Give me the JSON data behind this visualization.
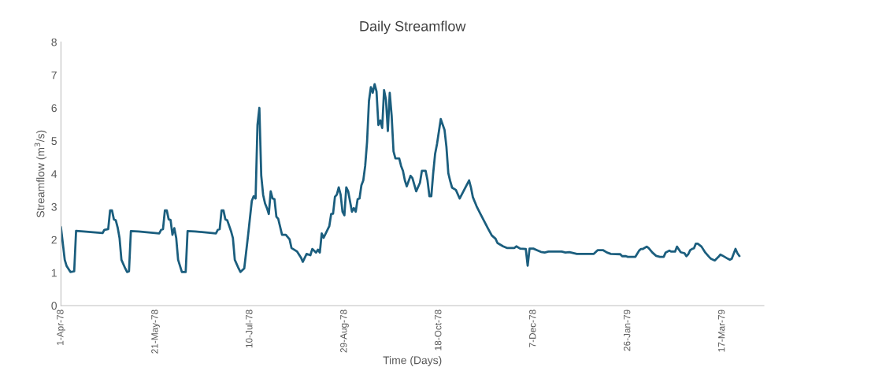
{
  "chart_data": {
    "type": "line",
    "title": "Daily Streamflow",
    "xlabel": "Time (Days)",
    "ylabel": "Streamflow (m$^{3}$/s)",
    "xlim": [
      "1978-04-01",
      "1979-04-08"
    ],
    "xticks": [
      {
        "value": "1978-04-01",
        "label": "1-Apr-78"
      },
      {
        "value": "1978-05-21",
        "label": "21-May-78"
      },
      {
        "value": "1978-07-10",
        "label": "10-Jul-78"
      },
      {
        "value": "1978-08-29",
        "label": "29-Aug-78"
      },
      {
        "value": "1978-10-18",
        "label": "18-Oct-78"
      },
      {
        "value": "1978-12-07",
        "label": "7-Dec-78"
      },
      {
        "value": "1979-01-26",
        "label": "26-Jan-79"
      },
      {
        "value": "1979-03-17",
        "label": "17-Mar-79"
      }
    ],
    "ylim": [
      0,
      8
    ],
    "yticks": [
      0,
      1,
      2,
      3,
      4,
      5,
      6,
      7,
      8
    ],
    "grid": false,
    "marker": "none",
    "line_style": "solid",
    "series": [
      {
        "color": "#1b5e7e",
        "x": [
          "1978-04-01",
          "1978-04-03",
          "1978-04-04",
          "1978-04-06",
          "1978-04-08",
          "1978-04-09",
          "1978-04-13",
          "1978-04-23",
          "1978-04-24",
          "1978-04-26",
          "1978-04-27",
          "1978-04-28",
          "1978-04-29",
          "1978-04-30",
          "1978-05-01",
          "1978-05-02",
          "1978-05-03",
          "1978-05-05",
          "1978-05-06",
          "1978-05-07",
          "1978-05-08",
          "1978-05-12",
          "1978-05-23",
          "1978-05-24",
          "1978-05-25",
          "1978-05-26",
          "1978-05-27",
          "1978-05-28",
          "1978-05-29",
          "1978-05-30",
          "1978-05-31",
          "1978-06-01",
          "1978-06-02",
          "1978-06-04",
          "1978-06-06",
          "1978-06-07",
          "1978-06-11",
          "1978-06-22",
          "1978-06-23",
          "1978-06-24",
          "1978-06-25",
          "1978-06-26",
          "1978-06-27",
          "1978-06-28",
          "1978-06-30",
          "1978-07-01",
          "1978-07-02",
          "1978-07-04",
          "1978-07-05",
          "1978-07-07",
          "1978-07-09",
          "1978-07-11",
          "1978-07-12",
          "1978-07-13",
          "1978-07-14",
          "1978-07-15",
          "1978-07-16",
          "1978-07-17",
          "1978-07-18",
          "1978-07-19",
          "1978-07-20",
          "1978-07-21",
          "1978-07-22",
          "1978-07-23",
          "1978-07-24",
          "1978-07-25",
          "1978-07-27",
          "1978-07-29",
          "1978-07-31",
          "1978-08-01",
          "1978-08-04",
          "1978-08-06",
          "1978-08-07",
          "1978-08-09",
          "1978-08-11",
          "1978-08-12",
          "1978-08-14",
          "1978-08-15",
          "1978-08-16",
          "1978-08-17",
          "1978-08-18",
          "1978-08-21",
          "1978-08-22",
          "1978-08-23",
          "1978-08-24",
          "1978-08-25",
          "1978-08-26",
          "1978-08-27",
          "1978-08-28",
          "1978-08-29",
          "1978-08-30",
          "1978-08-31",
          "1978-09-02",
          "1978-09-03",
          "1978-09-04",
          "1978-09-05",
          "1978-09-06",
          "1978-09-07",
          "1978-09-08",
          "1978-09-09",
          "1978-09-10",
          "1978-09-11",
          "1978-09-12",
          "1978-09-13",
          "1978-09-14",
          "1978-09-15",
          "1978-09-16",
          "1978-09-17",
          "1978-09-18",
          "1978-09-19",
          "1978-09-20",
          "1978-09-21",
          "1978-09-22",
          "1978-09-23",
          "1978-09-24",
          "1978-09-25",
          "1978-09-27",
          "1978-09-28",
          "1978-09-29",
          "1978-09-30",
          "1978-10-01",
          "1978-10-03",
          "1978-10-04",
          "1978-10-06",
          "1978-10-08",
          "1978-10-09",
          "1978-10-11",
          "1978-10-12",
          "1978-10-13",
          "1978-10-14",
          "1978-10-15",
          "1978-10-16",
          "1978-10-17",
          "1978-10-19",
          "1978-10-21",
          "1978-10-22",
          "1978-10-23",
          "1978-10-24",
          "1978-10-25",
          "1978-10-27",
          "1978-10-29",
          "1978-10-31",
          "1978-11-02",
          "1978-11-03",
          "1978-11-04",
          "1978-11-05",
          "1978-11-07",
          "1978-11-09",
          "1978-11-11",
          "1978-11-13",
          "1978-11-15",
          "1978-11-17",
          "1978-11-18",
          "1978-11-21",
          "1978-11-23",
          "1978-11-27",
          "1978-11-28",
          "1978-11-30",
          "1978-12-03",
          "1978-12-04",
          "1978-12-05",
          "1978-12-07",
          "1978-12-09",
          "1978-12-11",
          "1978-12-13",
          "1978-12-15",
          "1978-12-22",
          "1978-12-24",
          "1978-12-26",
          "1978-12-27",
          "1978-12-30",
          "1979-01-08",
          "1979-01-10",
          "1979-01-13",
          "1979-01-15",
          "1979-01-17",
          "1979-01-22",
          "1979-01-23",
          "1979-01-25",
          "1979-01-26",
          "1979-01-30",
          "1979-02-01",
          "1979-02-02",
          "1979-02-03",
          "1979-02-05",
          "1979-02-06",
          "1979-02-08",
          "1979-02-10",
          "1979-02-12",
          "1979-02-14",
          "1979-02-15",
          "1979-02-17",
          "1979-02-18",
          "1979-02-20",
          "1979-02-21",
          "1979-02-23",
          "1979-02-25",
          "1979-02-26",
          "1979-02-27",
          "1979-02-28",
          "1979-03-01",
          "1979-03-02",
          "1979-03-03",
          "1979-03-04",
          "1979-03-06",
          "1979-03-08",
          "1979-03-10",
          "1979-03-11",
          "1979-03-13",
          "1979-03-15",
          "1979-03-16",
          "1979-03-17",
          "1979-03-20",
          "1979-03-21",
          "1979-03-22",
          "1979-03-24",
          "1979-03-25",
          "1979-03-26"
        ],
        "values": [
          2.37,
          1.39,
          1.2,
          1.02,
          1.04,
          2.27,
          2.25,
          2.2,
          2.3,
          2.32,
          2.89,
          2.89,
          2.62,
          2.59,
          2.37,
          2.05,
          1.39,
          1.13,
          1.02,
          1.04,
          2.26,
          2.25,
          2.19,
          2.3,
          2.32,
          2.89,
          2.89,
          2.62,
          2.6,
          2.15,
          2.35,
          2.05,
          1.39,
          1.02,
          1.02,
          2.26,
          2.25,
          2.19,
          2.3,
          2.32,
          2.89,
          2.89,
          2.62,
          2.59,
          2.26,
          2.05,
          1.39,
          1.13,
          1.02,
          1.13,
          2.12,
          3.18,
          3.32,
          3.25,
          5.48,
          6.0,
          3.94,
          3.36,
          3.1,
          2.96,
          2.78,
          3.47,
          3.25,
          3.23,
          2.7,
          2.63,
          2.15,
          2.15,
          2.01,
          1.75,
          1.64,
          1.46,
          1.33,
          1.57,
          1.53,
          1.72,
          1.61,
          1.7,
          1.61,
          2.19,
          2.06,
          2.41,
          2.78,
          2.79,
          3.3,
          3.37,
          3.59,
          3.37,
          2.85,
          2.74,
          3.59,
          3.47,
          2.85,
          2.96,
          2.85,
          3.23,
          3.25,
          3.65,
          3.8,
          4.24,
          4.97,
          6.21,
          6.63,
          6.46,
          6.72,
          6.5,
          5.48,
          5.62,
          5.39,
          6.54,
          6.25,
          5.3,
          6.46,
          5.77,
          4.68,
          4.47,
          4.47,
          4.24,
          4.09,
          3.8,
          3.62,
          3.94,
          3.87,
          3.47,
          3.73,
          4.09,
          4.09,
          3.8,
          3.32,
          3.32,
          4.02,
          4.6,
          4.9,
          5.66,
          5.33,
          4.82,
          4.02,
          3.78,
          3.58,
          3.51,
          3.25,
          3.47,
          3.69,
          3.8,
          3.58,
          3.29,
          3.01,
          2.78,
          2.56,
          2.34,
          2.13,
          2.03,
          1.9,
          1.8,
          1.75,
          1.75,
          1.8,
          1.73,
          1.72,
          1.21,
          1.73,
          1.73,
          1.68,
          1.63,
          1.61,
          1.64,
          1.64,
          1.61,
          1.62,
          1.61,
          1.57,
          1.57,
          1.68,
          1.68,
          1.61,
          1.57,
          1.56,
          1.5,
          1.5,
          1.48,
          1.48,
          1.67,
          1.72,
          1.72,
          1.79,
          1.75,
          1.61,
          1.51,
          1.48,
          1.48,
          1.61,
          1.67,
          1.64,
          1.64,
          1.79,
          1.62,
          1.59,
          1.5,
          1.56,
          1.68,
          1.72,
          1.74,
          1.88,
          1.88,
          1.79,
          1.61,
          1.48,
          1.42,
          1.37,
          1.48,
          1.55,
          1.52,
          1.42,
          1.39,
          1.42,
          1.72,
          1.59,
          1.51
        ]
      }
    ]
  }
}
